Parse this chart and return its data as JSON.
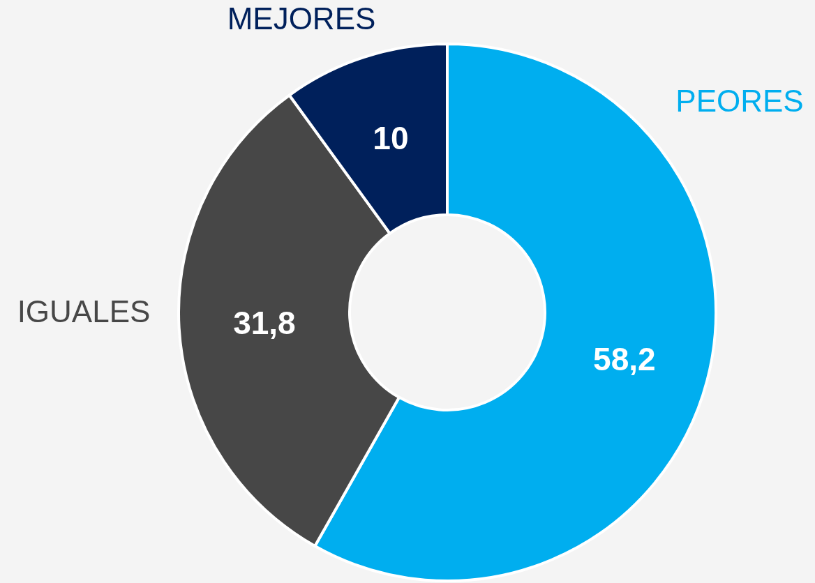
{
  "chart_data": {
    "type": "donut",
    "categories": [
      "PEORES",
      "IGUALES",
      "MEJORES"
    ],
    "values": [
      58.2,
      31.8,
      10
    ],
    "colors": [
      "#00aeef",
      "#474747",
      "#00205b"
    ],
    "value_labels": [
      "58,2",
      "31,8",
      "10"
    ]
  }
}
